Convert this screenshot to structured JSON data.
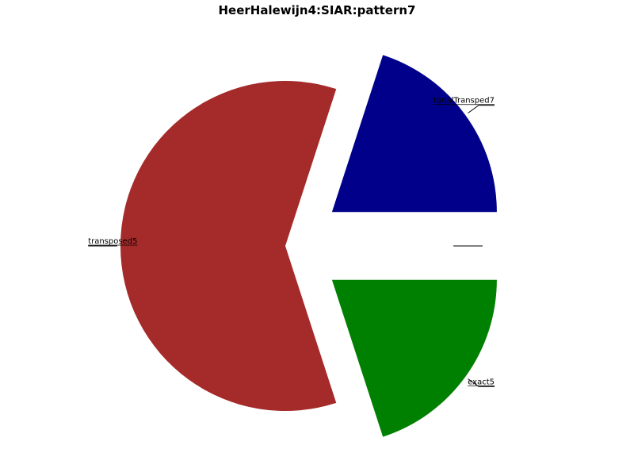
{
  "chart_data": {
    "type": "pie",
    "title": "HeerHalewijn4:SIAR:pattern7",
    "start_angle_deg": 0,
    "direction": "counterclockwise",
    "slices": [
      {
        "label": "tonalTransped7",
        "value": 1,
        "color": "#00008b",
        "exploded": true
      },
      {
        "label": "transposed5",
        "value": 3,
        "color": "#a52a2a",
        "exploded": false
      },
      {
        "label": "exact5",
        "value": 1,
        "color": "#008000",
        "exploded": true
      },
      {
        "label": "",
        "value": 0,
        "color": "#000000",
        "exploded": false
      },
      {
        "label": "",
        "value": 0,
        "color": "#000000",
        "exploded": false
      },
      {
        "label": "",
        "value": 0,
        "color": "#000000",
        "exploded": false
      }
    ]
  }
}
